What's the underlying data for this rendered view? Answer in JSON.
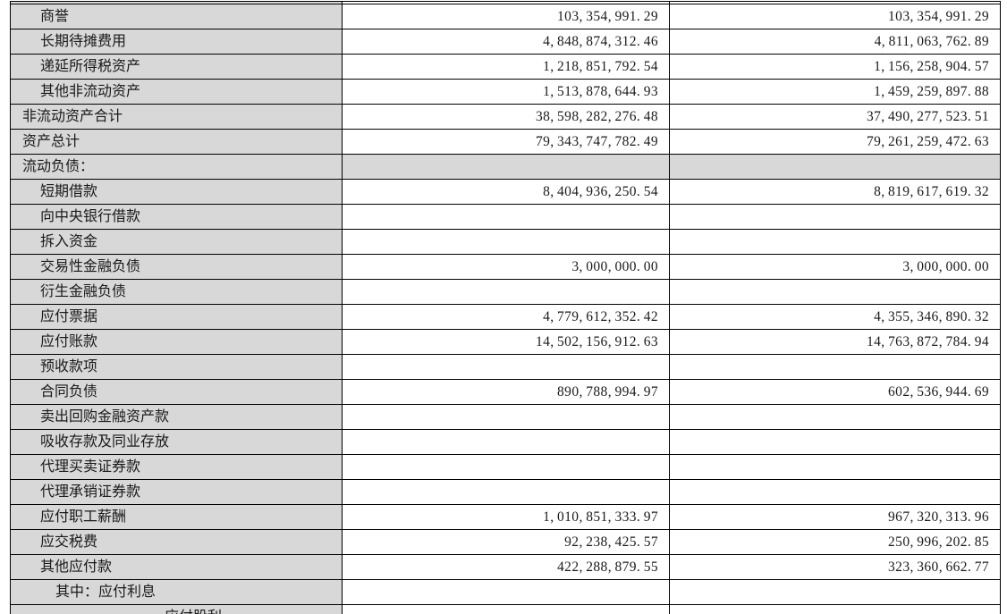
{
  "colors": {
    "label_column_bg": "#d8d8d8",
    "border": "#000000",
    "text": "#1a1a1a",
    "value_cell_bg": "#ffffff"
  },
  "table": {
    "description_columns": [
      "item",
      "current_period_value",
      "prior_period_value"
    ],
    "rows": [
      {
        "label": "商誉",
        "indent": 1,
        "section": false,
        "current": "103,354,991.29",
        "prior": "103,354,991.29"
      },
      {
        "label": "长期待摊费用",
        "indent": 1,
        "section": false,
        "current": "4,848,874,312.46",
        "prior": "4,811,063,762.89"
      },
      {
        "label": "递延所得税资产",
        "indent": 1,
        "section": false,
        "current": "1,218,851,792.54",
        "prior": "1,156,258,904.57"
      },
      {
        "label": "其他非流动资产",
        "indent": 1,
        "section": false,
        "current": "1,513,878,644.93",
        "prior": "1,459,259,897.88"
      },
      {
        "label": "非流动资产合计",
        "indent": 0,
        "section": false,
        "current": "38,598,282,276.48",
        "prior": "37,490,277,523.51"
      },
      {
        "label": "资产总计",
        "indent": 0,
        "section": false,
        "current": "79,343,747,782.49",
        "prior": "79,261,259,472.63"
      },
      {
        "label": "流动负债：",
        "indent": 0,
        "section": true,
        "current": "",
        "prior": ""
      },
      {
        "label": "短期借款",
        "indent": 1,
        "section": false,
        "current": "8,404,936,250.54",
        "prior": "8,819,617,619.32"
      },
      {
        "label": "向中央银行借款",
        "indent": 1,
        "section": false,
        "current": "",
        "prior": ""
      },
      {
        "label": "拆入资金",
        "indent": 1,
        "section": false,
        "current": "",
        "prior": ""
      },
      {
        "label": "交易性金融负债",
        "indent": 1,
        "section": false,
        "current": "3,000,000.00",
        "prior": "3,000,000.00"
      },
      {
        "label": "衍生金融负债",
        "indent": 1,
        "section": false,
        "current": "",
        "prior": ""
      },
      {
        "label": "应付票据",
        "indent": 1,
        "section": false,
        "current": "4,779,612,352.42",
        "prior": "4,355,346,890.32"
      },
      {
        "label": "应付账款",
        "indent": 1,
        "section": false,
        "current": "14,502,156,912.63",
        "prior": "14,763,872,784.94"
      },
      {
        "label": "预收款项",
        "indent": 1,
        "section": false,
        "current": "",
        "prior": ""
      },
      {
        "label": "合同负债",
        "indent": 1,
        "section": false,
        "current": "890,788,994.97",
        "prior": "602,536,944.69"
      },
      {
        "label": "卖出回购金融资产款",
        "indent": 1,
        "section": false,
        "current": "",
        "prior": ""
      },
      {
        "label": "吸收存款及同业存放",
        "indent": 1,
        "section": false,
        "current": "",
        "prior": ""
      },
      {
        "label": "代理买卖证券款",
        "indent": 1,
        "section": false,
        "current": "",
        "prior": ""
      },
      {
        "label": "代理承销证券款",
        "indent": 1,
        "section": false,
        "current": "",
        "prior": ""
      },
      {
        "label": "应付职工薪酬",
        "indent": 1,
        "section": false,
        "current": "1,010,851,333.97",
        "prior": "967,320,313.96"
      },
      {
        "label": "应交税费",
        "indent": 1,
        "section": false,
        "current": "92,238,425.57",
        "prior": "250,996,202.85"
      },
      {
        "label": "其他应付款",
        "indent": 1,
        "section": false,
        "current": "422,288,879.55",
        "prior": "323,360,662.77"
      },
      {
        "label": "其中：应付利息",
        "indent": 2,
        "section": false,
        "current": "",
        "prior": ""
      },
      {
        "label": "应付股利",
        "indent": 3,
        "section": false,
        "current": "",
        "prior": ""
      }
    ]
  }
}
